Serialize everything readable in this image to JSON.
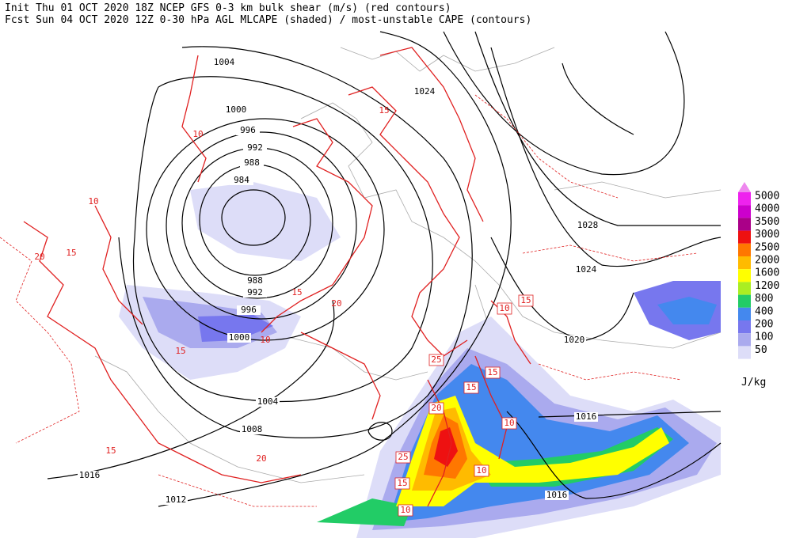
{
  "header": {
    "line1": "Init  Thu 01 OCT 2020 18Z  NCEP GFS 0-3 km bulk shear (m/s) (red contours)",
    "line2": "Fcst Sun 04 OCT 2020 12Z  0-30 hPa AGL MLCAPE (shaded) / most-unstable CAPE (contours)"
  },
  "legend": {
    "unit": "J/kg",
    "levels": [
      {
        "label": "5000",
        "color": "#ee22ee"
      },
      {
        "label": "4000",
        "color": "#cc00cc"
      },
      {
        "label": "3500",
        "color": "#aa0088"
      },
      {
        "label": "3000",
        "color": "#ee1111"
      },
      {
        "label": "2500",
        "color": "#ff7700"
      },
      {
        "label": "2000",
        "color": "#ffbb00"
      },
      {
        "label": "1600",
        "color": "#ffff00"
      },
      {
        "label": "1200",
        "color": "#aaee22"
      },
      {
        "label": "800",
        "color": "#22cc66"
      },
      {
        "label": "400",
        "color": "#4488ee"
      },
      {
        "label": "200",
        "color": "#7777ee"
      },
      {
        "label": "100",
        "color": "#aaaaee"
      },
      {
        "label": "50",
        "color": "#ddddf8"
      }
    ]
  },
  "map": {
    "isobar_labels": [
      "1004",
      "1000",
      "996",
      "992",
      "988",
      "984",
      "988",
      "992",
      "996",
      "1000",
      "1004",
      "1008",
      "1012",
      "1016",
      "1024",
      "1028",
      "1024",
      "1020",
      "1016",
      "1016"
    ],
    "shear_boxed_labels": [
      "20",
      "25",
      "15",
      "15",
      "10",
      "25",
      "15",
      "10",
      "10",
      "15",
      "10"
    ],
    "shear_labels": [
      "10",
      "15",
      "20",
      "15",
      "10",
      "15",
      "20",
      "15",
      "10",
      "20",
      "15"
    ]
  }
}
